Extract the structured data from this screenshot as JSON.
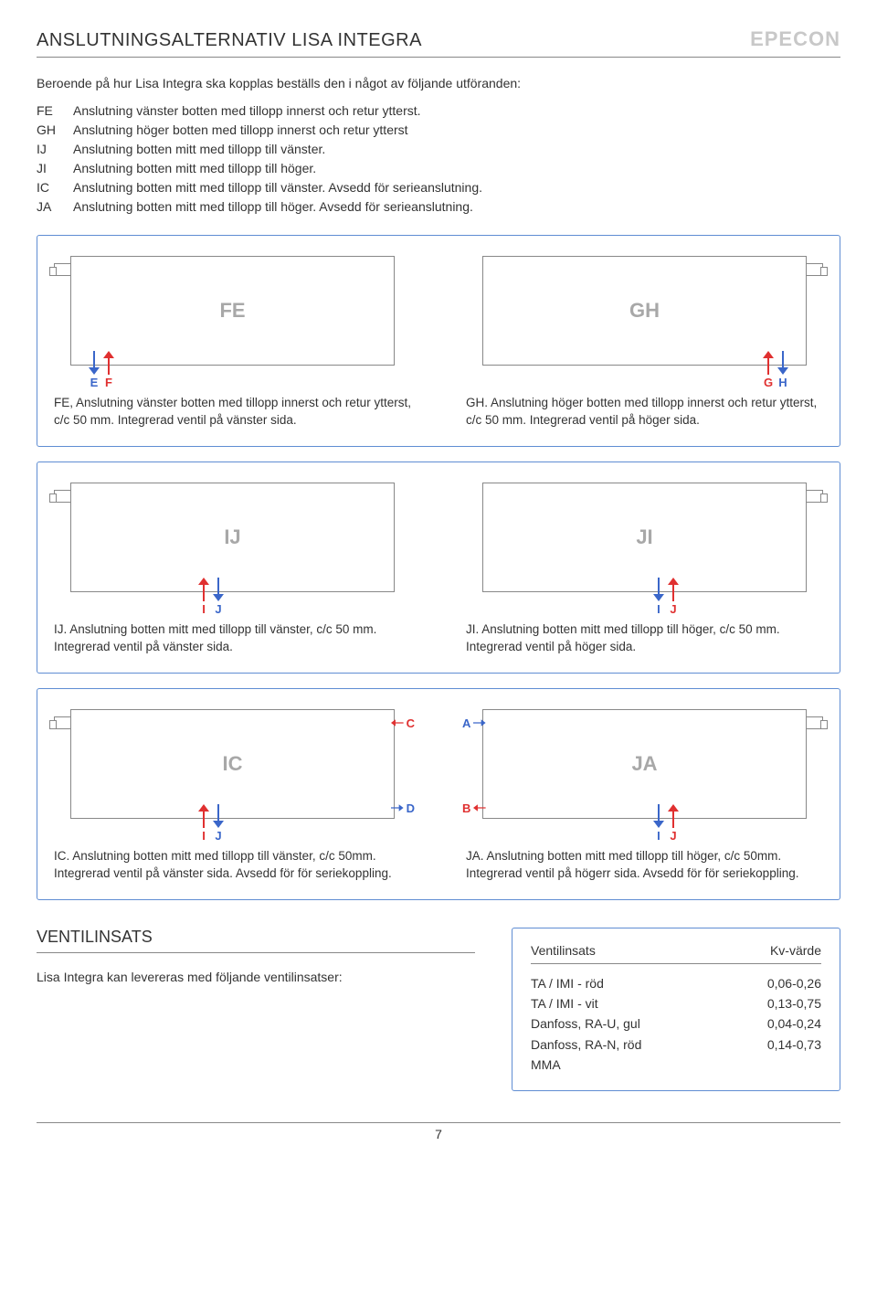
{
  "page": {
    "title": "ANSLUTNINGSALTERNATIV LISA INTEGRA",
    "brand": "EPECON",
    "intro": "Beroende på hur Lisa Integra ska kopplas beställs den i något av följande utföranden:",
    "page_number": "7"
  },
  "colors": {
    "panel_border": "#5f8dd3",
    "radiator_border": "#888888",
    "rad_label": "#a8a8a8",
    "flow_red": "#e03030",
    "flow_blue": "#3a66c9",
    "brand_grey": "#c8c8c8"
  },
  "codes": [
    {
      "code": "FE",
      "desc": "Anslutning vänster botten med tillopp innerst och retur ytterst."
    },
    {
      "code": "GH",
      "desc": "Anslutning höger botten med tillopp innerst och retur ytterst"
    },
    {
      "code": "IJ",
      "desc": "Anslutning botten mitt med tillopp till vänster."
    },
    {
      "code": "JI",
      "desc": "Anslutning botten mitt med tillopp till höger."
    },
    {
      "code": "IC",
      "desc": "Anslutning botten mitt med tillopp till vänster. Avsedd för serieanslutning."
    },
    {
      "code": "JA",
      "desc": "Anslutning botten mitt med tillopp till höger. Avsedd för serieanslutning."
    }
  ],
  "diagrams": {
    "FE": {
      "label": "FE",
      "arrows_pos": "leftpos",
      "ports": [
        {
          "letter": "E",
          "color": "blue",
          "dir": "down"
        },
        {
          "letter": "F",
          "color": "red",
          "dir": "up"
        }
      ],
      "caption": "FE, Anslutning vänster botten med tillopp innerst och retur ytterst, c/c 50 mm. Integrerad ventil på vänster sida."
    },
    "GH": {
      "label": "GH",
      "arrows_pos": "rightpos",
      "ports": [
        {
          "letter": "G",
          "color": "red",
          "dir": "up"
        },
        {
          "letter": "H",
          "color": "blue",
          "dir": "down"
        }
      ],
      "caption": "GH. Anslutning höger botten med tillopp innerst och retur ytterst, c/c 50 mm. Integrerad ventil på höger sida."
    },
    "IJ": {
      "label": "IJ",
      "arrows_pos": "midleft",
      "ports": [
        {
          "letter": "I",
          "color": "red",
          "dir": "up"
        },
        {
          "letter": "J",
          "color": "blue",
          "dir": "down"
        }
      ],
      "caption": "IJ. Anslutning botten mitt med tillopp till vänster, c/c 50 mm. Integrerad ventil på vänster sida."
    },
    "JI": {
      "label": "JI",
      "arrows_pos": "midright",
      "ports": [
        {
          "letter": "I",
          "color": "blue",
          "dir": "down"
        },
        {
          "letter": "J",
          "color": "red",
          "dir": "up"
        }
      ],
      "caption": "JI. Anslutning botten mitt med tillopp till höger, c/c 50 mm. Integrerad ventil på höger sida."
    },
    "IC": {
      "label": "IC",
      "arrows_pos": "midleft",
      "ports": [
        {
          "letter": "I",
          "color": "red",
          "dir": "up"
        },
        {
          "letter": "J",
          "color": "blue",
          "dir": "down"
        }
      ],
      "side_ports": [
        {
          "letter": "C",
          "color": "red",
          "side": "rightside",
          "pos": "top",
          "dir": "in"
        },
        {
          "letter": "D",
          "color": "blue",
          "side": "rightside",
          "pos": "bot",
          "dir": "out"
        }
      ],
      "caption": "IC. Anslutning botten mitt med tillopp till vänster, c/c 50mm. Integrerad ventil på vänster sida. Avsedd för för seriekoppling."
    },
    "JA": {
      "label": "JA",
      "arrows_pos": "midright",
      "ports": [
        {
          "letter": "I",
          "color": "blue",
          "dir": "down"
        },
        {
          "letter": "J",
          "color": "red",
          "dir": "up"
        }
      ],
      "side_ports": [
        {
          "letter": "A",
          "color": "blue",
          "side": "leftside",
          "pos": "top",
          "dir": "in"
        },
        {
          "letter": "B",
          "color": "red",
          "side": "leftside",
          "pos": "bot",
          "dir": "out"
        }
      ],
      "caption": "JA. Anslutning botten mitt med tillopp till höger, c/c 50mm. Integrerad ventil på högerr sida. Avsedd för för seriekoppling."
    }
  },
  "ventil": {
    "heading": "VENTILINSATS",
    "text": "Lisa Integra kan levereras med följande ventilinsatser:",
    "table": {
      "col1": "Ventilinsats",
      "col2": "Kv-värde",
      "rows": [
        {
          "name": "TA / IMI - röd",
          "kv": "0,06-0,26"
        },
        {
          "name": "TA / IMI - vit",
          "kv": "0,13-0,75"
        },
        {
          "name": "Danfoss, RA-U, gul",
          "kv": "0,04-0,24"
        },
        {
          "name": "Danfoss, RA-N, röd",
          "kv": "0,14-0,73"
        },
        {
          "name": "MMA",
          "kv": ""
        }
      ]
    }
  }
}
